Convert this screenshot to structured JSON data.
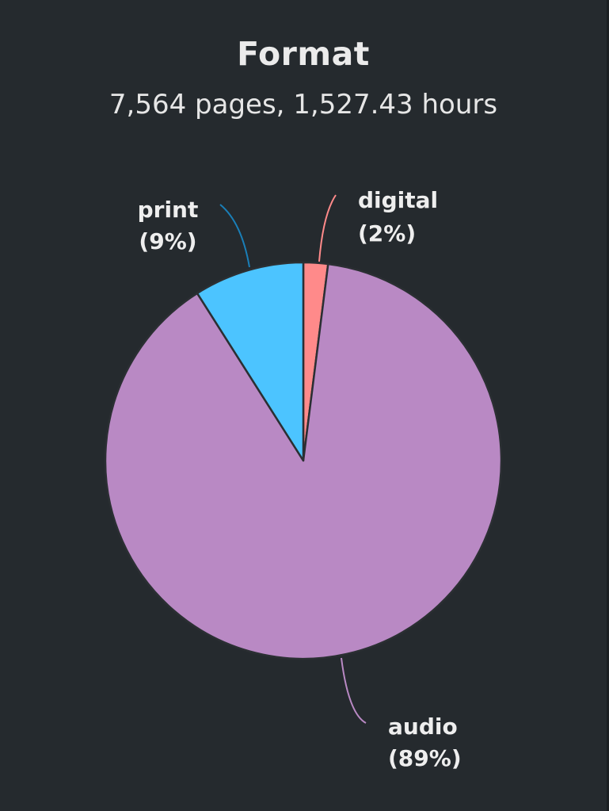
{
  "header": {
    "title": "Format",
    "subtitle": "7,564 pages, 1,527.43 hours"
  },
  "chart_data": {
    "type": "pie",
    "title": "Format",
    "subtitle": "7,564 pages, 1,527.43 hours",
    "slices": [
      {
        "label": "digital",
        "value": 2,
        "percent_label": "(2%)",
        "color": "#ff8a8a"
      },
      {
        "label": "audio",
        "value": 89,
        "percent_label": "(89%)",
        "color": "#b989c4"
      },
      {
        "label": "print",
        "value": 9,
        "percent_label": "(9%)",
        "color": "#4cc4ff"
      }
    ],
    "start_angle": "top, clockwise",
    "legend": "none",
    "slice_border_color": "#2b2f33",
    "leader_colors": {
      "digital": "#ff8a8a",
      "audio": "#b989c4",
      "print": "#1a7fb8"
    }
  }
}
